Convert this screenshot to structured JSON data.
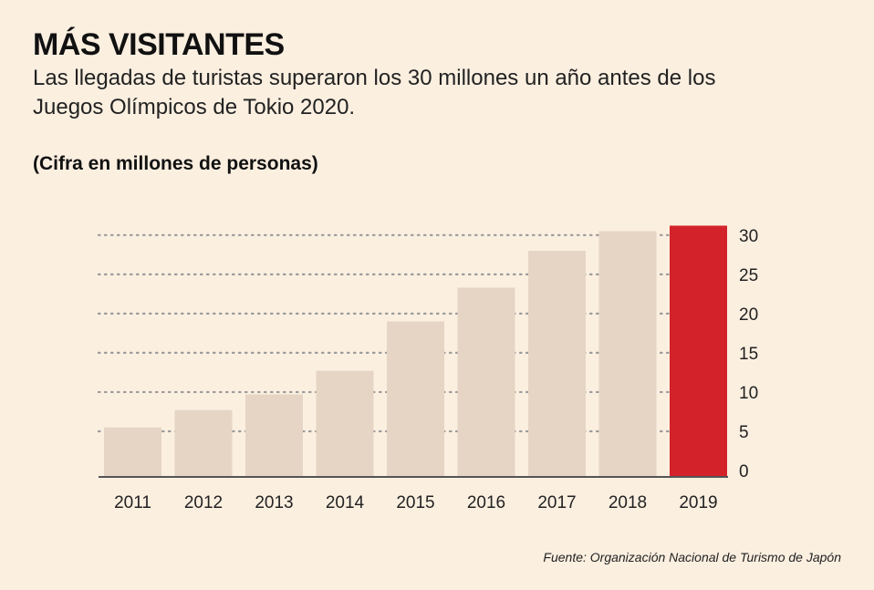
{
  "header": {
    "title": "MÁS VISITANTES",
    "subtitle": "Las llegadas de turistas superaron los 30 millones un año antes de los Juegos Olímpicos de Tokio 2020.",
    "unit_label": "(Cifra en millones de personas)"
  },
  "footer": {
    "source": "Fuente: Organización Nacional de Turismo de Japón"
  },
  "colors": {
    "background": "#fbefe0",
    "bar": "#e6d5c4",
    "highlight_bar": "#d3222a",
    "grid": "#9a9a9a",
    "axis": "#555555"
  },
  "chart_data": {
    "type": "bar",
    "categories": [
      "2011",
      "2012",
      "2013",
      "2014",
      "2015",
      "2016",
      "2017",
      "2018",
      "2019"
    ],
    "values": [
      6.2,
      8.4,
      10.4,
      13.4,
      19.7,
      24.0,
      28.7,
      31.2,
      31.9
    ],
    "highlight_index": 8,
    "ylim": [
      0,
      33
    ],
    "yticks": [
      0,
      5,
      10,
      15,
      20,
      25,
      30
    ],
    "y_axis_position": "right",
    "grid": "dotted horizontal",
    "xlabel": "",
    "ylabel": ""
  }
}
